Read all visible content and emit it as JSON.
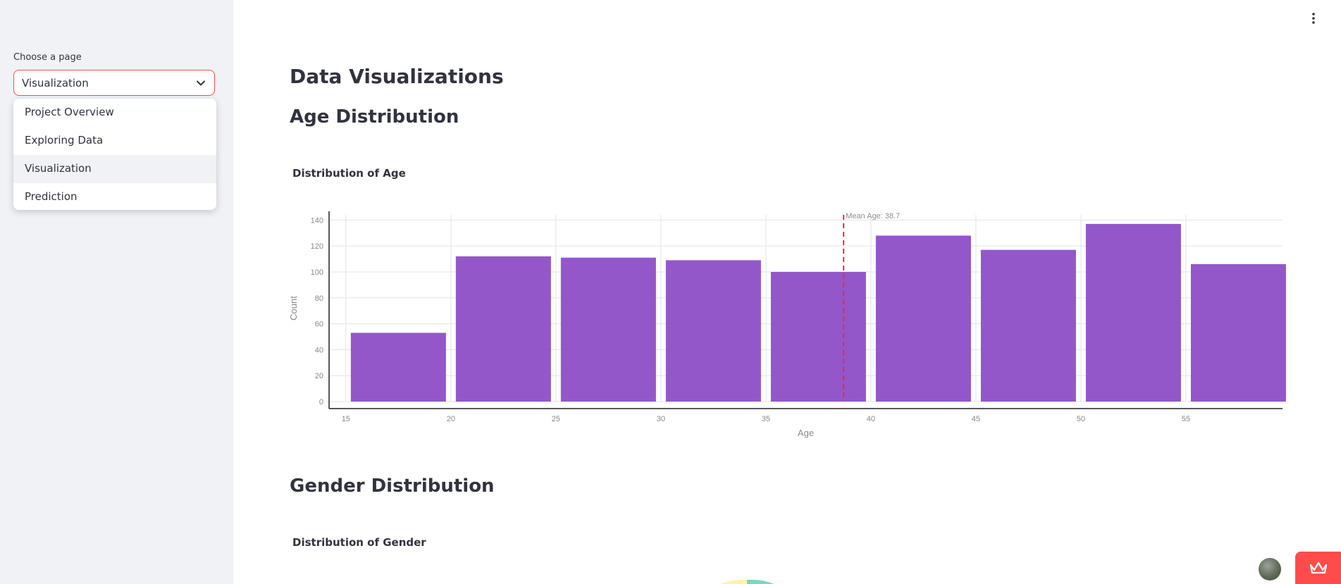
{
  "sidebar": {
    "select_label": "Choose a page",
    "select_value": "Visualization",
    "options": [
      {
        "label": "Project Overview"
      },
      {
        "label": "Exploring Data"
      },
      {
        "label": "Visualization",
        "selected": true
      },
      {
        "label": "Prediction"
      }
    ]
  },
  "main": {
    "title": "Data Visualizations",
    "section_age": "Age Distribution",
    "age_chart_title": "Distribution of Age",
    "section_gender": "Gender Distribution",
    "gender_chart_title": "Distribution of Gender"
  },
  "colors": {
    "accent": "#ff4b4b",
    "bar": "#8e4ec6",
    "mean_line": "#ef2b2b",
    "sidebar_bg": "#f0f2f6"
  },
  "icons": {
    "chevron": "chevron-down-icon",
    "menu": "kebab-menu-icon",
    "deploy": "crown-icon"
  },
  "chart_data": {
    "type": "bar",
    "title": "Distribution of Age",
    "xlabel": "Age",
    "ylabel": "Count",
    "bin_starts": [
      15,
      20,
      25,
      30,
      35,
      40,
      45,
      50,
      55
    ],
    "bin_width": 5,
    "values": [
      53,
      112,
      111,
      109,
      100,
      128,
      117,
      137,
      106
    ],
    "x_ticks": [
      15,
      20,
      25,
      30,
      35,
      40,
      45,
      50,
      55
    ],
    "y_ticks": [
      0,
      20,
      40,
      60,
      80,
      100,
      120,
      140
    ],
    "xlim": [
      14.2,
      59.6
    ],
    "ylim": [
      0,
      144
    ],
    "mean_value": 38.7,
    "mean_label": "Mean Age: 38.7",
    "grid": true
  }
}
